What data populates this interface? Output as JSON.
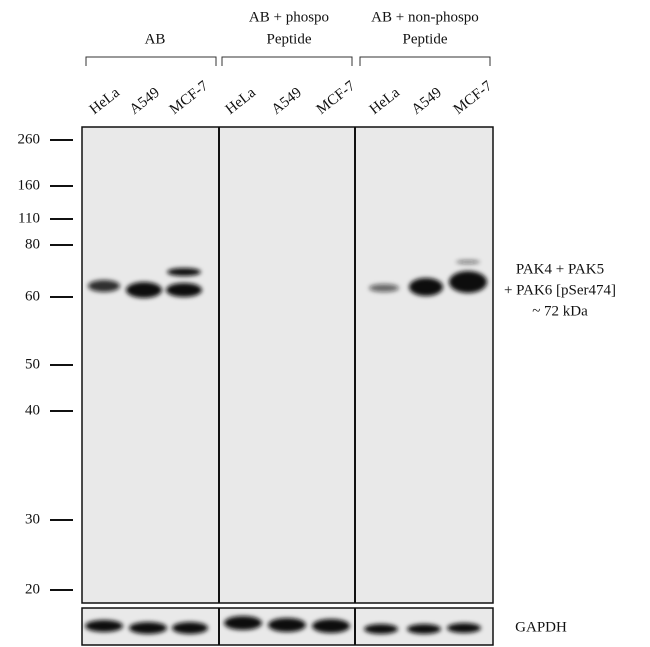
{
  "groups": [
    {
      "lines": [
        "AB"
      ]
    },
    {
      "lines": [
        "AB + phospo",
        "Peptide"
      ]
    },
    {
      "lines": [
        "AB + non-phospo",
        "Peptide"
      ]
    }
  ],
  "lanes": [
    "HeLa",
    "A549",
    "MCF-7",
    "HeLa",
    "A549",
    "MCF-7",
    "HeLa",
    "A549",
    "MCF-7"
  ],
  "markers": [
    260,
    160,
    110,
    80,
    60,
    50,
    40,
    30,
    20
  ],
  "target_label": [
    "PAK4 + PAK5",
    "+ PAK6 [pSer474]",
    "~ 72 kDa"
  ],
  "loading_control": "GAPDH"
}
